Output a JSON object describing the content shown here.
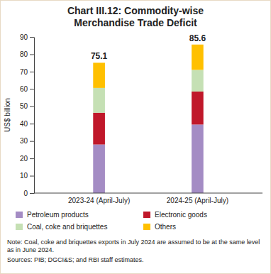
{
  "chart_data": {
    "type": "bar",
    "stacked": true,
    "grid": false,
    "title": "Chart III.12: Commodity-wise Merchandise Trade Deficit",
    "y_label": "US$ billion",
    "categories": [
      "2023-24 (April-July)",
      "2024-25 (April-July)"
    ],
    "series": [
      {
        "name": "Petroleum products",
        "color": "#a48cc4",
        "values": [
          28,
          39.5
        ]
      },
      {
        "name": "Electronic goods",
        "color": "#c0182a",
        "values": [
          18.3,
          19
        ]
      },
      {
        "name": "Coal, coke and briquettes",
        "color": "#c5e0b4",
        "values": [
          14.3,
          12.5
        ]
      },
      {
        "name": "Others",
        "color": "#ffc000",
        "values": [
          14.5,
          14.6
        ]
      }
    ],
    "totals": [
      75.1,
      85.6
    ],
    "ylim": [
      0,
      90
    ],
    "yticks": [
      0,
      10,
      20,
      30,
      40,
      50,
      60,
      70,
      80,
      90
    ],
    "note": "Note: Coal, coke and briquettes exports in July 2024 are assumed to be at the same level as in June 2024.",
    "sources": "Sources: PIB; DGCI&S; and RBI staff estimates."
  }
}
